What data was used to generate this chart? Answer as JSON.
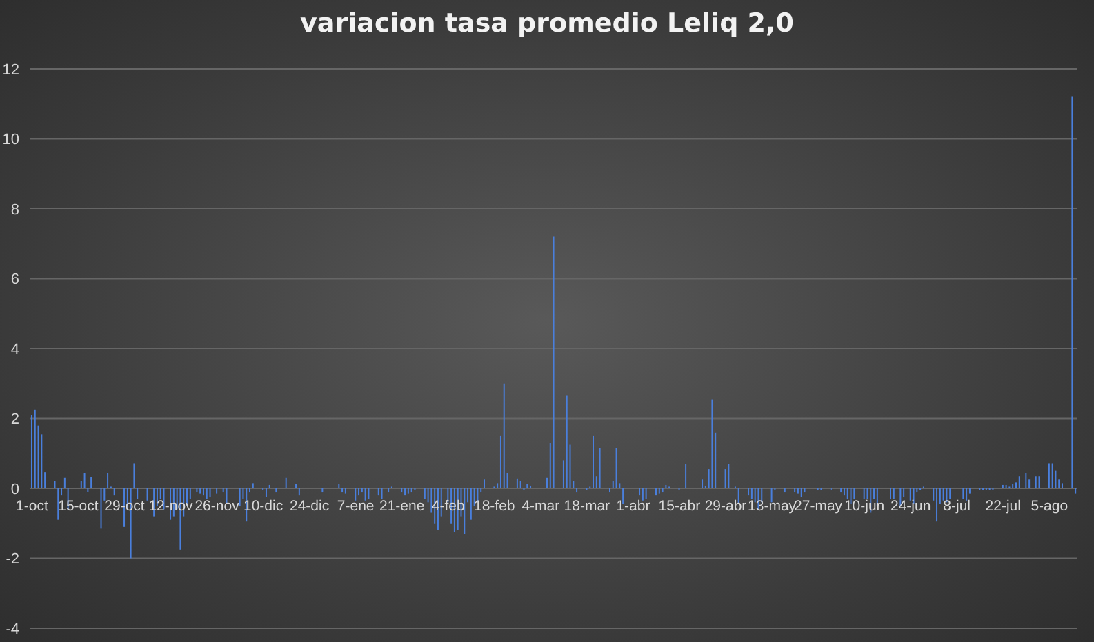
{
  "chart_data": {
    "type": "bar",
    "title": "variacion tasa promedio Leliq 2,0",
    "categories": [
      "1-oct",
      null,
      null,
      null,
      null,
      null,
      null,
      null,
      null,
      null,
      null,
      null,
      null,
      null,
      "15-oct",
      null,
      null,
      null,
      null,
      null,
      null,
      null,
      null,
      null,
      null,
      null,
      null,
      null,
      "29-oct",
      null,
      null,
      null,
      null,
      null,
      null,
      null,
      null,
      null,
      null,
      null,
      null,
      null,
      "12-nov",
      null,
      null,
      null,
      null,
      null,
      null,
      null,
      null,
      null,
      null,
      null,
      null,
      null,
      "26-nov",
      null,
      null,
      null,
      null,
      null,
      null,
      null,
      null,
      null,
      null,
      null,
      null,
      null,
      "10-dic",
      null,
      null,
      null,
      null,
      null,
      null,
      null,
      null,
      null,
      null,
      null,
      null,
      null,
      "24-dic",
      null,
      null,
      null,
      null,
      null,
      null,
      null,
      null,
      null,
      null,
      null,
      null,
      null,
      "7-ene",
      null,
      null,
      null,
      null,
      null,
      null,
      null,
      null,
      null,
      null,
      null,
      null,
      null,
      "21-ene",
      null,
      null,
      null,
      null,
      null,
      null,
      null,
      null,
      null,
      null,
      null,
      null,
      null,
      "4-feb",
      null,
      null,
      null,
      null,
      null,
      null,
      null,
      null,
      null,
      null,
      null,
      null,
      null,
      "18-feb",
      null,
      null,
      null,
      null,
      null,
      null,
      null,
      null,
      null,
      null,
      null,
      null,
      null,
      "4-mar",
      null,
      null,
      null,
      null,
      null,
      null,
      null,
      null,
      null,
      null,
      null,
      null,
      null,
      "18-mar",
      null,
      null,
      null,
      null,
      null,
      null,
      null,
      null,
      null,
      null,
      null,
      null,
      null,
      "1-abr",
      null,
      null,
      null,
      null,
      null,
      null,
      null,
      null,
      null,
      null,
      null,
      null,
      null,
      "15-abr",
      null,
      null,
      null,
      null,
      null,
      null,
      null,
      null,
      null,
      null,
      null,
      null,
      null,
      "29-abr",
      null,
      null,
      null,
      null,
      null,
      null,
      null,
      null,
      null,
      null,
      null,
      null,
      null,
      "13-may",
      null,
      null,
      null,
      null,
      null,
      null,
      null,
      null,
      null,
      null,
      null,
      null,
      null,
      "27-may",
      null,
      null,
      null,
      null,
      null,
      null,
      null,
      null,
      null,
      null,
      null,
      null,
      null,
      "10-jun",
      null,
      null,
      null,
      null,
      null,
      null,
      null,
      null,
      null,
      null,
      null,
      null,
      null,
      "24-jun",
      null,
      null,
      null,
      null,
      null,
      null,
      null,
      null,
      null,
      null,
      null,
      null,
      null,
      "8-jul",
      null,
      null,
      null,
      null,
      null,
      null,
      null,
      null,
      null,
      null,
      null,
      null,
      null,
      "22-jul",
      null,
      null,
      null,
      null,
      null,
      null,
      null,
      null,
      null,
      null,
      null,
      null,
      null,
      "5-ago",
      null,
      null,
      null,
      null,
      null,
      null,
      null,
      null
    ],
    "values": [
      2.1,
      2.25,
      1.8,
      1.55,
      0.47,
      null,
      null,
      0.2,
      -0.9,
      -0.2,
      0.3,
      -0.6,
      null,
      null,
      null,
      0.2,
      0.45,
      -0.1,
      0.33,
      null,
      null,
      -1.15,
      -0.35,
      0.45,
      0.05,
      -0.2,
      null,
      null,
      -1.1,
      -0.6,
      -2.0,
      0.72,
      -0.3,
      null,
      null,
      -0.35,
      null,
      -0.8,
      -0.5,
      -0.3,
      -0.6,
      null,
      -0.9,
      -0.8,
      -0.6,
      -1.75,
      -0.8,
      -0.5,
      -0.3,
      null,
      -0.1,
      -0.15,
      -0.2,
      -0.3,
      -0.25,
      null,
      -0.15,
      null,
      -0.1,
      -0.45,
      null,
      null,
      null,
      -0.5,
      -0.3,
      -0.95,
      -0.1,
      0.15,
      null,
      null,
      -0.05,
      -0.25,
      0.1,
      null,
      -0.1,
      null,
      null,
      0.3,
      null,
      null,
      0.13,
      -0.2,
      null,
      null,
      null,
      null,
      null,
      null,
      -0.1,
      null,
      null,
      null,
      null,
      0.13,
      -0.1,
      -0.15,
      null,
      null,
      -0.35,
      -0.2,
      -0.1,
      -0.35,
      -0.3,
      null,
      null,
      -0.2,
      -0.3,
      null,
      -0.1,
      0.05,
      null,
      null,
      -0.1,
      -0.2,
      -0.15,
      -0.1,
      -0.05,
      null,
      null,
      -0.3,
      -0.4,
      -0.7,
      -1.0,
      -1.2,
      -0.8,
      null,
      -0.4,
      -1.0,
      -1.25,
      -1.2,
      -0.8,
      -1.3,
      -0.4,
      -0.9,
      -0.5,
      -0.4,
      -0.1,
      0.25,
      null,
      null,
      0.05,
      0.15,
      1.5,
      3.0,
      0.45,
      null,
      null,
      0.28,
      0.2,
      -0.05,
      0.12,
      0.08,
      null,
      null,
      null,
      null,
      0.3,
      1.3,
      7.2,
      null,
      null,
      0.8,
      2.65,
      1.25,
      0.2,
      -0.1,
      null,
      null,
      -0.05,
      0.05,
      1.5,
      0.35,
      1.15,
      null,
      null,
      -0.1,
      0.2,
      1.15,
      0.15,
      -0.45,
      null,
      null,
      null,
      null,
      -0.2,
      -0.35,
      -0.3,
      null,
      null,
      -0.2,
      -0.15,
      -0.1,
      0.1,
      0.05,
      null,
      null,
      -0.05,
      null,
      0.7,
      null,
      null,
      null,
      null,
      0.25,
      0.08,
      0.55,
      2.55,
      1.6,
      null,
      null,
      0.55,
      0.7,
      null,
      0.05,
      -0.45,
      null,
      null,
      -0.2,
      -0.3,
      -0.4,
      -0.6,
      -0.4,
      null,
      null,
      -0.4,
      -0.05,
      null,
      null,
      -0.1,
      null,
      null,
      -0.1,
      -0.15,
      -0.25,
      -0.1,
      null,
      null,
      null,
      -0.05,
      -0.05,
      null,
      null,
      -0.05,
      null,
      null,
      -0.1,
      -0.2,
      -0.3,
      -0.45,
      -0.3,
      null,
      null,
      -0.3,
      -0.3,
      -0.7,
      -0.3,
      -0.5,
      null,
      null,
      null,
      -0.3,
      -0.3,
      null,
      -0.5,
      -0.25,
      null,
      -0.35,
      -0.45,
      -0.1,
      -0.05,
      0.05,
      null,
      null,
      -0.35,
      -0.95,
      -0.45,
      -0.35,
      -0.4,
      -0.3,
      null,
      null,
      null,
      -0.3,
      -0.35,
      -0.15,
      null,
      null,
      -0.05,
      -0.05,
      -0.05,
      -0.05,
      -0.05,
      null,
      null,
      0.1,
      0.1,
      0.05,
      0.13,
      0.17,
      0.35,
      null,
      0.45,
      0.25,
      null,
      0.35,
      0.35,
      null,
      null,
      0.72,
      0.72,
      0.5,
      0.25,
      0.15,
      null,
      null,
      11.2,
      -0.15
    ],
    "color": "#4a7fdc",
    "ylim": [
      -4,
      12
    ],
    "yticks": [
      -4,
      -2,
      0,
      2,
      4,
      6,
      8,
      10,
      12
    ],
    "grid": "y",
    "legend": false
  }
}
